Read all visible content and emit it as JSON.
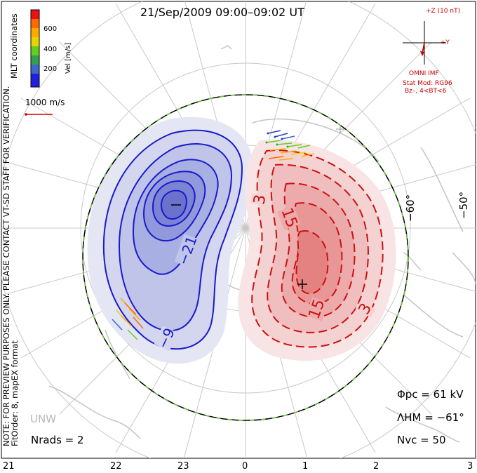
{
  "title": "21/Sep/2009 09:00–09:02 UT",
  "coords_label": "MLT coordinates",
  "colorbar": {
    "unit_label": "Vel [m/s]",
    "ticks": [
      "600",
      "400",
      "200"
    ],
    "colors": [
      "#ee1111",
      "#ff6a00",
      "#ffaa00",
      "#e8d200",
      "#66cc22",
      "#33a050",
      "#3a6ac8",
      "#2020dd"
    ]
  },
  "vector_scale_label": "1000 m/s",
  "imf": {
    "bz_label": "+Z (10 nT)",
    "by_label": "+Y",
    "source_label": "OMNI IMF",
    "stat_model": "Stat Mod: RG96",
    "condition": "Bz–, 4<BT<6"
  },
  "notes": {
    "preview_note": "NOTE: FOR PREVIEW PURPOSES ONLY. PLEASE CONTACT VT-SD STAFF FOR VERIFICATION.",
    "fit_order": "FitOrder: 8, mapEX format"
  },
  "latitude_labels": [
    "−60°",
    "−50°"
  ],
  "contour_labels": {
    "negative": [
      "−21",
      "−9"
    ],
    "positive": [
      "3",
      "15",
      "15",
      "3"
    ]
  },
  "radar_label": "UNW",
  "stats": {
    "phi_pc": "Φpc = 61 kV",
    "lambda_hm": "ΛHM = −61°",
    "n_vc": "Nvc = 50",
    "n_rads": "Nrads = 2"
  },
  "mlt_axis": [
    "21",
    "22",
    "23",
    "0",
    "1",
    "2",
    "3"
  ],
  "colors": {
    "negative_cell": "#1a1acc",
    "positive_cell": "#cc1111",
    "boundary": "#33aa33",
    "imf_red": "#cc0000"
  }
}
